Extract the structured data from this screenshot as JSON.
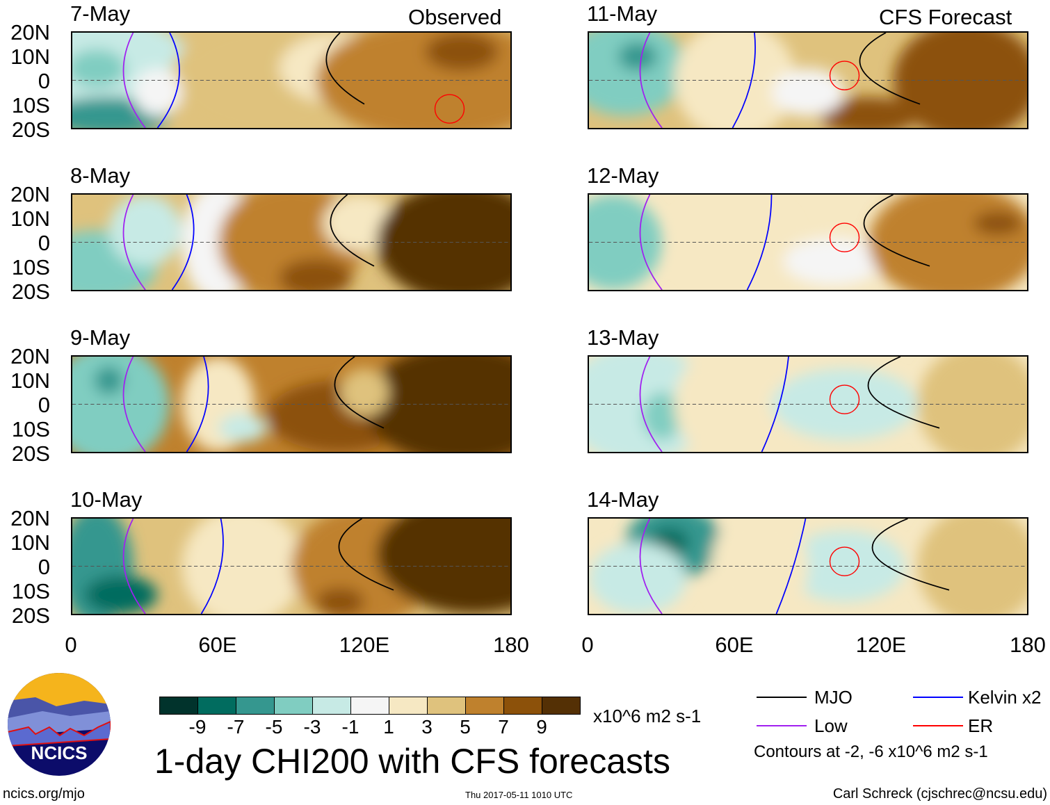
{
  "observed_label": "Observed",
  "forecast_label": "CFS Forecast",
  "chart_data": {
    "type": "heatmap",
    "title": "1-day CHI200 with CFS forecasts",
    "units": "x10^6 m2 s-1",
    "panels_observed": [
      "7-May",
      "8-May",
      "9-May",
      "10-May"
    ],
    "panels_forecast": [
      "11-May",
      "12-May",
      "13-May",
      "14-May"
    ],
    "y_ticks": [
      "20N",
      "10N",
      "0",
      "10S",
      "20S"
    ],
    "x_ticks": [
      "0",
      "60E",
      "120E",
      "180"
    ],
    "xlim": [
      0,
      180
    ],
    "ylim": [
      -20,
      20
    ],
    "colorbar_levels": [
      "-9",
      "-7",
      "-5",
      "-3",
      "-1",
      "1",
      "3",
      "5",
      "7",
      "9"
    ],
    "colorbar_colors": [
      "#01332c",
      "#016c5f",
      "#35978f",
      "#80cdc1",
      "#c7eae5",
      "#f5f5f5",
      "#f6e8c3",
      "#dfc27d",
      "#bf812d",
      "#8c510a",
      "#543005"
    ]
  },
  "legend": {
    "mjo": "MJO",
    "kelvin": "Kelvin x2",
    "low": "Low",
    "er": "ER",
    "colors": {
      "mjo": "#000000",
      "kelvin": "#0000ff",
      "low": "#a020f0",
      "er": "#ff0000"
    },
    "contours": "Contours at -2, -6 x10^6 m2 s-1"
  },
  "logo": {
    "text": "NCICS"
  },
  "footer": {
    "url": "ncics.org/mjo",
    "timestamp": "Thu 2017-05-11 1010 UTC",
    "author": "Carl Schreck (cjschrec@ncsu.edu)"
  }
}
